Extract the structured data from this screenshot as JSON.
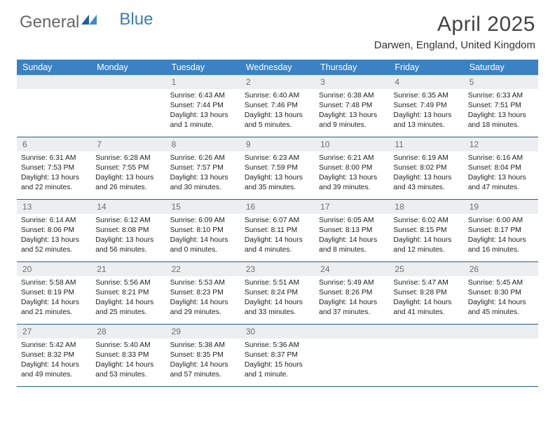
{
  "brand": {
    "part1": "General",
    "part2": "Blue"
  },
  "title": "April 2025",
  "location": "Darwen, England, United Kingdom",
  "colors": {
    "header_bg": "#3a82c4",
    "header_text": "#ffffff",
    "daynum_bg": "#eceeef",
    "daynum_text": "#6a6f73",
    "week_border": "#2b5d8a",
    "brand_gray": "#666666",
    "brand_blue": "#3a7ab8"
  },
  "typography": {
    "title_fontsize": 30,
    "location_fontsize": 15,
    "dayhead_fontsize": 12.5,
    "daynum_fontsize": 12,
    "body_fontsize": 10.3
  },
  "day_names": [
    "Sunday",
    "Monday",
    "Tuesday",
    "Wednesday",
    "Thursday",
    "Friday",
    "Saturday"
  ],
  "weeks": [
    [
      null,
      null,
      {
        "n": "1",
        "rise": "6:43 AM",
        "set": "7:44 PM",
        "dl": "13 hours and 1 minute."
      },
      {
        "n": "2",
        "rise": "6:40 AM",
        "set": "7:46 PM",
        "dl": "13 hours and 5 minutes."
      },
      {
        "n": "3",
        "rise": "6:38 AM",
        "set": "7:48 PM",
        "dl": "13 hours and 9 minutes."
      },
      {
        "n": "4",
        "rise": "6:35 AM",
        "set": "7:49 PM",
        "dl": "13 hours and 13 minutes."
      },
      {
        "n": "5",
        "rise": "6:33 AM",
        "set": "7:51 PM",
        "dl": "13 hours and 18 minutes."
      }
    ],
    [
      {
        "n": "6",
        "rise": "6:31 AM",
        "set": "7:53 PM",
        "dl": "13 hours and 22 minutes."
      },
      {
        "n": "7",
        "rise": "6:28 AM",
        "set": "7:55 PM",
        "dl": "13 hours and 26 minutes."
      },
      {
        "n": "8",
        "rise": "6:26 AM",
        "set": "7:57 PM",
        "dl": "13 hours and 30 minutes."
      },
      {
        "n": "9",
        "rise": "6:23 AM",
        "set": "7:59 PM",
        "dl": "13 hours and 35 minutes."
      },
      {
        "n": "10",
        "rise": "6:21 AM",
        "set": "8:00 PM",
        "dl": "13 hours and 39 minutes."
      },
      {
        "n": "11",
        "rise": "6:19 AM",
        "set": "8:02 PM",
        "dl": "13 hours and 43 minutes."
      },
      {
        "n": "12",
        "rise": "6:16 AM",
        "set": "8:04 PM",
        "dl": "13 hours and 47 minutes."
      }
    ],
    [
      {
        "n": "13",
        "rise": "6:14 AM",
        "set": "8:06 PM",
        "dl": "13 hours and 52 minutes."
      },
      {
        "n": "14",
        "rise": "6:12 AM",
        "set": "8:08 PM",
        "dl": "13 hours and 56 minutes."
      },
      {
        "n": "15",
        "rise": "6:09 AM",
        "set": "8:10 PM",
        "dl": "14 hours and 0 minutes."
      },
      {
        "n": "16",
        "rise": "6:07 AM",
        "set": "8:11 PM",
        "dl": "14 hours and 4 minutes."
      },
      {
        "n": "17",
        "rise": "6:05 AM",
        "set": "8:13 PM",
        "dl": "14 hours and 8 minutes."
      },
      {
        "n": "18",
        "rise": "6:02 AM",
        "set": "8:15 PM",
        "dl": "14 hours and 12 minutes."
      },
      {
        "n": "19",
        "rise": "6:00 AM",
        "set": "8:17 PM",
        "dl": "14 hours and 16 minutes."
      }
    ],
    [
      {
        "n": "20",
        "rise": "5:58 AM",
        "set": "8:19 PM",
        "dl": "14 hours and 21 minutes."
      },
      {
        "n": "21",
        "rise": "5:56 AM",
        "set": "8:21 PM",
        "dl": "14 hours and 25 minutes."
      },
      {
        "n": "22",
        "rise": "5:53 AM",
        "set": "8:23 PM",
        "dl": "14 hours and 29 minutes."
      },
      {
        "n": "23",
        "rise": "5:51 AM",
        "set": "8:24 PM",
        "dl": "14 hours and 33 minutes."
      },
      {
        "n": "24",
        "rise": "5:49 AM",
        "set": "8:26 PM",
        "dl": "14 hours and 37 minutes."
      },
      {
        "n": "25",
        "rise": "5:47 AM",
        "set": "8:28 PM",
        "dl": "14 hours and 41 minutes."
      },
      {
        "n": "26",
        "rise": "5:45 AM",
        "set": "8:30 PM",
        "dl": "14 hours and 45 minutes."
      }
    ],
    [
      {
        "n": "27",
        "rise": "5:42 AM",
        "set": "8:32 PM",
        "dl": "14 hours and 49 minutes."
      },
      {
        "n": "28",
        "rise": "5:40 AM",
        "set": "8:33 PM",
        "dl": "14 hours and 53 minutes."
      },
      {
        "n": "29",
        "rise": "5:38 AM",
        "set": "8:35 PM",
        "dl": "14 hours and 57 minutes."
      },
      {
        "n": "30",
        "rise": "5:36 AM",
        "set": "8:37 PM",
        "dl": "15 hours and 1 minute."
      },
      null,
      null,
      null
    ]
  ],
  "labels": {
    "sunrise": "Sunrise:",
    "sunset": "Sunset:",
    "daylight": "Daylight:"
  }
}
